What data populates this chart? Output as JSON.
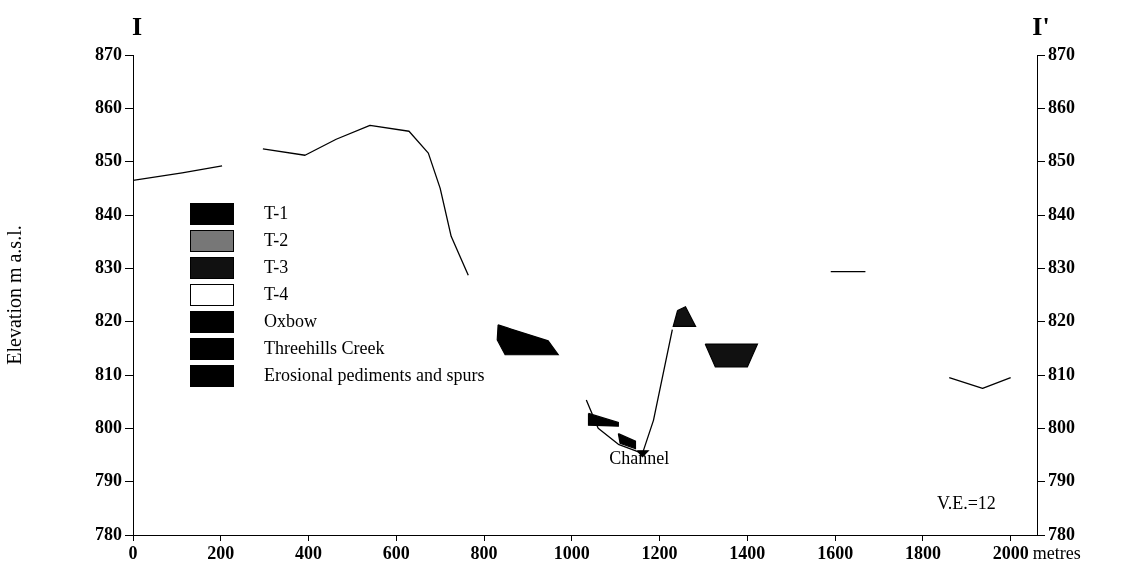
{
  "chart_data": {
    "type": "line",
    "xlabel": "metres",
    "ylabel": "Elevation m a.s.l.",
    "annotations": [
      "I",
      "I'",
      "Channel",
      "V.E.=12"
    ],
    "xlim": [
      0,
      2060
    ],
    "xticks": [
      0,
      200,
      400,
      600,
      800,
      1000,
      1200,
      1400,
      1600,
      1800,
      2000
    ],
    "ylim": [
      780,
      870
    ],
    "yticks": [
      780,
      790,
      800,
      810,
      820,
      830,
      840,
      850,
      860,
      870
    ],
    "y2lim": [
      780,
      870
    ],
    "y2ticks": [
      780,
      790,
      800,
      810,
      820,
      830,
      840,
      850,
      860,
      870
    ],
    "legend": "left",
    "grid": false,
    "marker": "none",
    "series": [
      {
        "color": "#000000",
        "x": [
          0,
          112,
          203,
          null,
          296,
          392,
          463,
          540,
          629,
          673,
          700,
          725,
          764,
          null,
          1033,
          1060,
          1106,
          1161,
          1186,
          1229,
          null,
          1590,
          1669,
          null,
          1860,
          1936,
          2000
        ],
        "values": [
          846.5,
          847.9,
          849.2,
          null,
          852.4,
          851.2,
          854.2,
          856.8,
          855.7,
          851.6,
          845,
          836,
          828.7,
          null,
          805.3,
          800,
          797,
          795.3,
          801.5,
          818.5,
          null,
          829.4,
          829.4,
          null,
          809.5,
          807.5,
          809.5
        ]
      },
      {
        "type": "area",
        "name": "T-1",
        "color": "#000000",
        "x": [
          1038,
          1106,
          1106,
          1038
        ],
        "values": [
          802.8,
          801.1,
          800.4,
          800.6
        ]
      },
      {
        "type": "area",
        "name": "T-2",
        "color": "#777777"
      },
      {
        "type": "area",
        "name": "T-3",
        "color": "#111111",
        "x": [
          1241,
          1259,
          1282,
          1231,
          null,
          1304,
          1423,
          1400,
          1327
        ],
        "values": [
          822.1,
          822.8,
          819.1,
          819.1,
          null,
          815.8,
          815.8,
          811.5,
          811.5
        ]
      },
      {
        "type": "area",
        "name": "T-4",
        "color": "#ffffff"
      },
      {
        "type": "area",
        "name": "Oxbow",
        "color": "#000000",
        "x": [
          1106,
          1145,
          1145,
          1110
        ],
        "values": [
          799,
          797.6,
          796.2,
          797.2
        ]
      },
      {
        "type": "area",
        "name": "Threehills Creek",
        "color": "#000000",
        "x": [
          1149,
          1174,
          1161
        ],
        "values": [
          795.8,
          795.8,
          794.7
        ]
      },
      {
        "type": "area",
        "name": "Erosional pediments and spurs",
        "color": "#000000",
        "x": [
          832,
          946,
          969,
          848,
          830
        ],
        "values": [
          819.4,
          816.4,
          813.8,
          813.8,
          816.6
        ]
      }
    ]
  }
}
